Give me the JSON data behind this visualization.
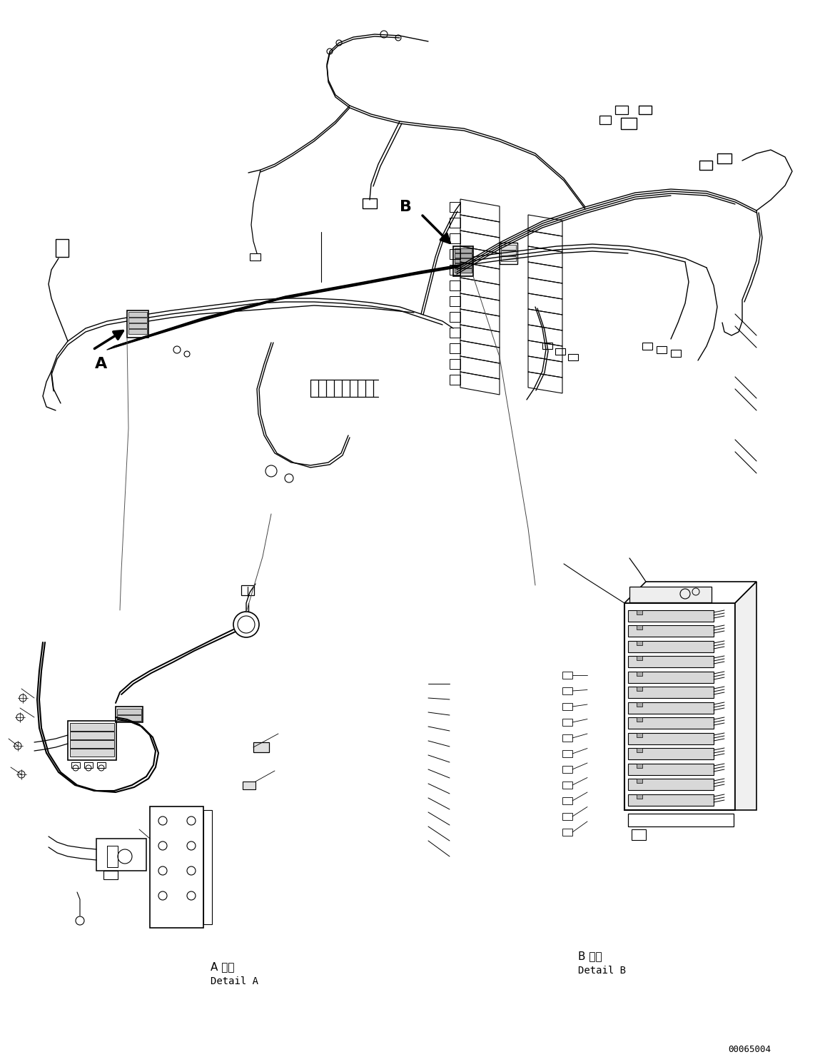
{
  "background_color": "#ffffff",
  "line_color": "#000000",
  "part_number": "00065004",
  "label_A": "A",
  "label_B": "B",
  "detail_A_jp": "A 詳細",
  "detail_A_en": "Detail A",
  "detail_B_jp": "B 詳細",
  "detail_B_en": "Detail B",
  "fig_width": 11.63,
  "fig_height": 14.88,
  "dpi": 100
}
